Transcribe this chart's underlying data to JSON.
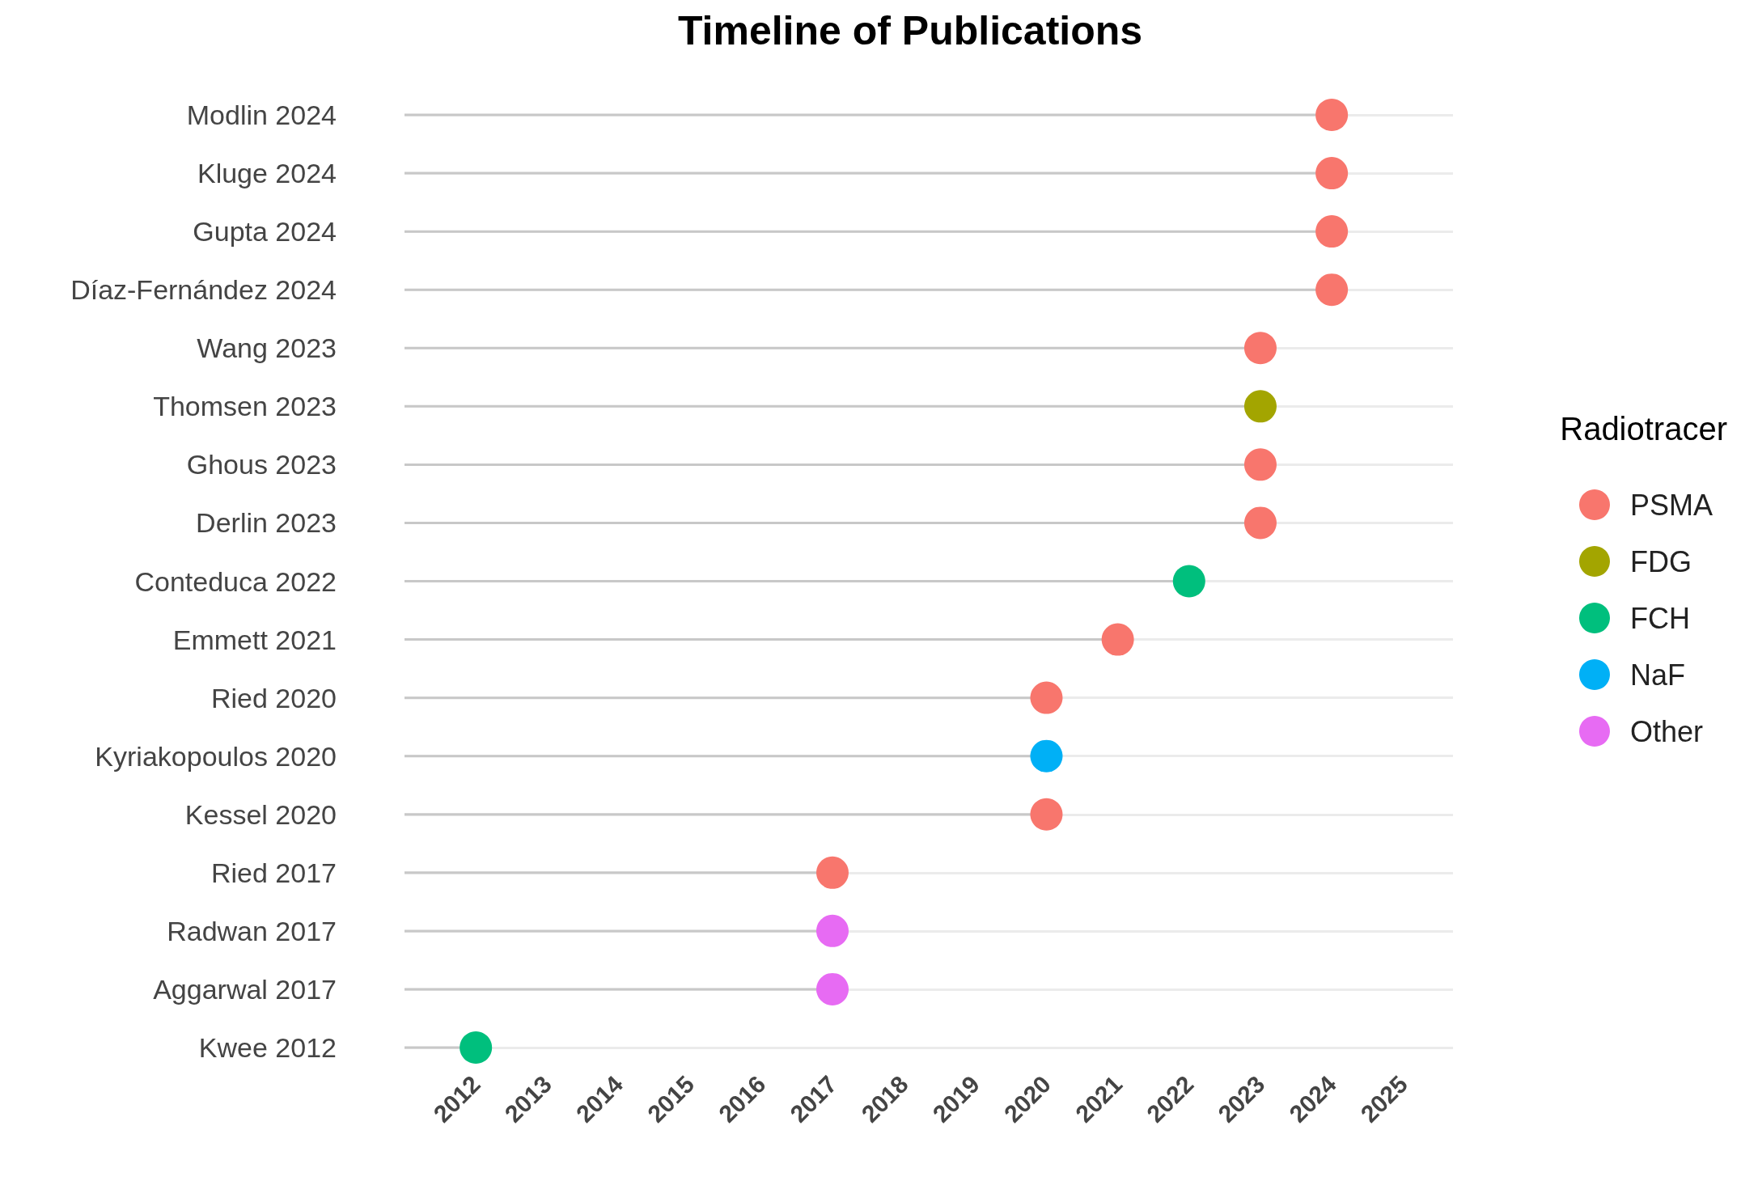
{
  "chart_data": {
    "type": "lollipop",
    "orientation": "horizontal",
    "title": "Timeline of Publications",
    "legend_title": "Radiotracer",
    "categories": [
      "Modlin 2024",
      "Kluge 2024",
      "Gupta 2024",
      "Díaz-Fernández 2024",
      "Wang 2023",
      "Thomsen 2023",
      "Ghous 2023",
      "Derlin 2023",
      "Conteduca 2022",
      "Emmett 2021",
      "Ried 2020",
      "Kyriakopoulos 2020",
      "Kessel 2020",
      "Ried 2017",
      "Radwan 2017",
      "Aggarwal 2017",
      "Kwee 2012"
    ],
    "series": [
      {
        "name": "PSMA",
        "color": "#f8766d",
        "values": [
          2024,
          2024,
          2024,
          2024,
          2023,
          null,
          2023,
          2023,
          null,
          2021,
          2020,
          null,
          2020,
          2017,
          null,
          null,
          null
        ]
      },
      {
        "name": "FDG",
        "color": "#a3a500",
        "values": [
          null,
          null,
          null,
          null,
          null,
          2023,
          null,
          null,
          null,
          null,
          null,
          null,
          null,
          null,
          null,
          null,
          null
        ]
      },
      {
        "name": "FCH",
        "color": "#00bf7d",
        "values": [
          null,
          null,
          null,
          null,
          null,
          null,
          null,
          null,
          2022,
          null,
          null,
          null,
          null,
          null,
          null,
          null,
          2012
        ]
      },
      {
        "name": "NaF",
        "color": "#00b0f6",
        "values": [
          null,
          null,
          null,
          null,
          null,
          null,
          null,
          null,
          null,
          null,
          null,
          2020,
          null,
          null,
          null,
          null,
          null
        ]
      },
      {
        "name": "Other",
        "color": "#e76bf3",
        "values": [
          null,
          null,
          null,
          null,
          null,
          null,
          null,
          null,
          null,
          null,
          null,
          null,
          null,
          null,
          2017,
          2017,
          null
        ]
      }
    ],
    "xlim": [
      2011,
      2025.7
    ],
    "xticks": [
      2012,
      2013,
      2014,
      2015,
      2016,
      2017,
      2018,
      2019,
      2020,
      2021,
      2022,
      2023,
      2024,
      2025
    ],
    "grid": "y",
    "legend": "right",
    "marker": "circle"
  }
}
